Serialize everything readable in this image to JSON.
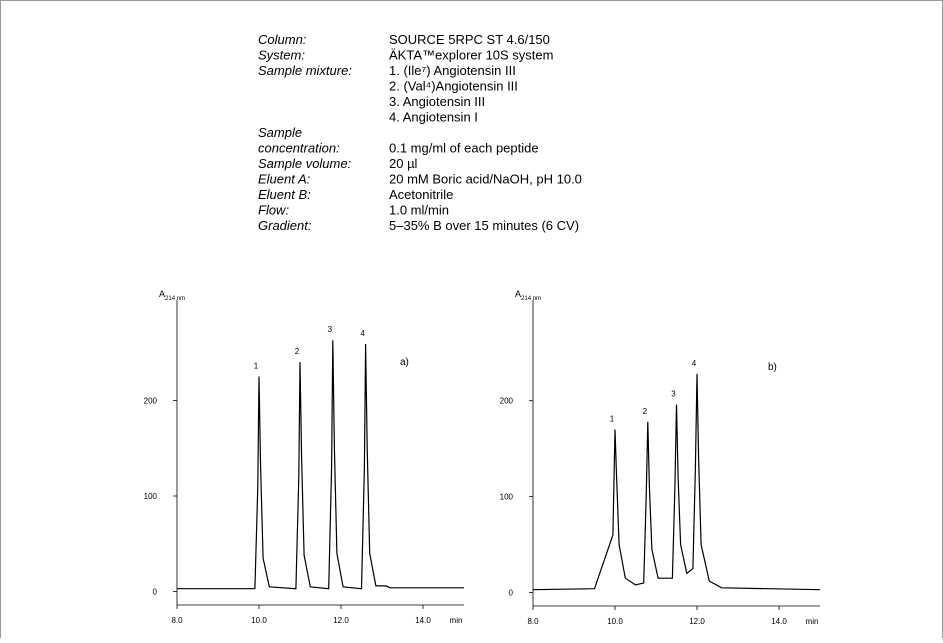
{
  "conditions": {
    "rows": [
      {
        "label": [
          "Column:"
        ],
        "values": [
          "SOURCE 5RPC ST 4.6/150"
        ]
      },
      {
        "label": [
          "System:"
        ],
        "values": [
          "ÄKTA™explorer 10S system"
        ]
      },
      {
        "label": [
          "Sample mixture:"
        ],
        "values": [
          "1. (Ile⁷)  Angiotensin III",
          "2. (Val⁴)Angiotensin III",
          "3. Angiotensin III",
          "4. Angiotensin I"
        ]
      },
      {
        "label": [
          "Sample",
          "concentration:"
        ],
        "values": [
          "",
          "0.1 mg/ml of each peptide"
        ]
      },
      {
        "label": [
          "Sample volume:"
        ],
        "values": [
          "20 µl"
        ]
      },
      {
        "label": [
          "Eluent A:"
        ],
        "values": [
          "20 mM Boric acid/NaOH, pH 10.0"
        ]
      },
      {
        "label": [
          "Eluent B:"
        ],
        "values": [
          "Acetonitrile"
        ]
      },
      {
        "label": [
          "Flow:"
        ],
        "values": [
          "1.0 ml/min"
        ]
      },
      {
        "label": [
          "Gradient:"
        ],
        "values": [
          "5–35% B over 15 minutes (6 CV)"
        ]
      }
    ]
  },
  "chart_data": [
    {
      "type": "line",
      "panel": "a)",
      "ylabel": "A",
      "ylabel_sub": "214 nm",
      "xlabel": "min",
      "color": "#000000",
      "peak_labels": [
        "1",
        "2",
        "3",
        "4"
      ],
      "x": [
        8.0,
        9.0,
        9.9,
        9.97,
        10.0,
        10.04,
        10.1,
        10.25,
        10.9,
        10.97,
        11.0,
        11.04,
        11.1,
        11.25,
        11.7,
        11.77,
        11.8,
        11.84,
        11.9,
        12.05,
        12.5,
        12.57,
        12.6,
        12.64,
        12.7,
        12.85,
        13.1,
        13.2,
        15.0
      ],
      "values": [
        3,
        3,
        3,
        110,
        225,
        130,
        35,
        5,
        3,
        120,
        240,
        140,
        38,
        5,
        3,
        130,
        263,
        150,
        40,
        5,
        3,
        130,
        259,
        150,
        40,
        6,
        6,
        4,
        4
      ],
      "xlim": [
        8.0,
        15.0
      ],
      "xticks": [
        {
          "value": 8,
          "label": "8.0"
        },
        {
          "value": 10,
          "label": "10.0"
        },
        {
          "value": 12,
          "label": "12.0"
        },
        {
          "value": 14,
          "label": "14.0"
        }
      ],
      "ylim": [
        -14,
        305
      ],
      "yticks": [
        0,
        100,
        200
      ]
    },
    {
      "type": "line",
      "panel": "b)",
      "ylabel": "A",
      "ylabel_sub": "214 nm",
      "xlabel": "min",
      "color": "#000000",
      "peak_labels": [
        "1",
        "2",
        "3",
        "4"
      ],
      "x": [
        8.0,
        9.5,
        9.95,
        10.0,
        10.04,
        10.1,
        10.25,
        10.5,
        10.7,
        10.76,
        10.8,
        10.84,
        10.9,
        11.05,
        11.4,
        11.46,
        11.5,
        11.54,
        11.6,
        11.75,
        11.9,
        11.96,
        12.0,
        12.04,
        12.1,
        12.3,
        12.6,
        15.0
      ],
      "values": [
        3,
        4,
        60,
        170,
        120,
        50,
        15,
        8,
        10,
        100,
        178,
        110,
        45,
        15,
        15,
        110,
        196,
        120,
        50,
        20,
        25,
        130,
        228,
        140,
        50,
        12,
        5,
        3
      ],
      "xlim": [
        8.0,
        15.0
      ],
      "xticks": [
        {
          "value": 8,
          "label": "8.0"
        },
        {
          "value": 10,
          "label": "10.0"
        },
        {
          "value": 12,
          "label": "12.0"
        },
        {
          "value": 14,
          "label": "14.0"
        }
      ],
      "ylim": [
        -14,
        305
      ],
      "yticks": [
        0,
        100,
        200
      ]
    }
  ]
}
